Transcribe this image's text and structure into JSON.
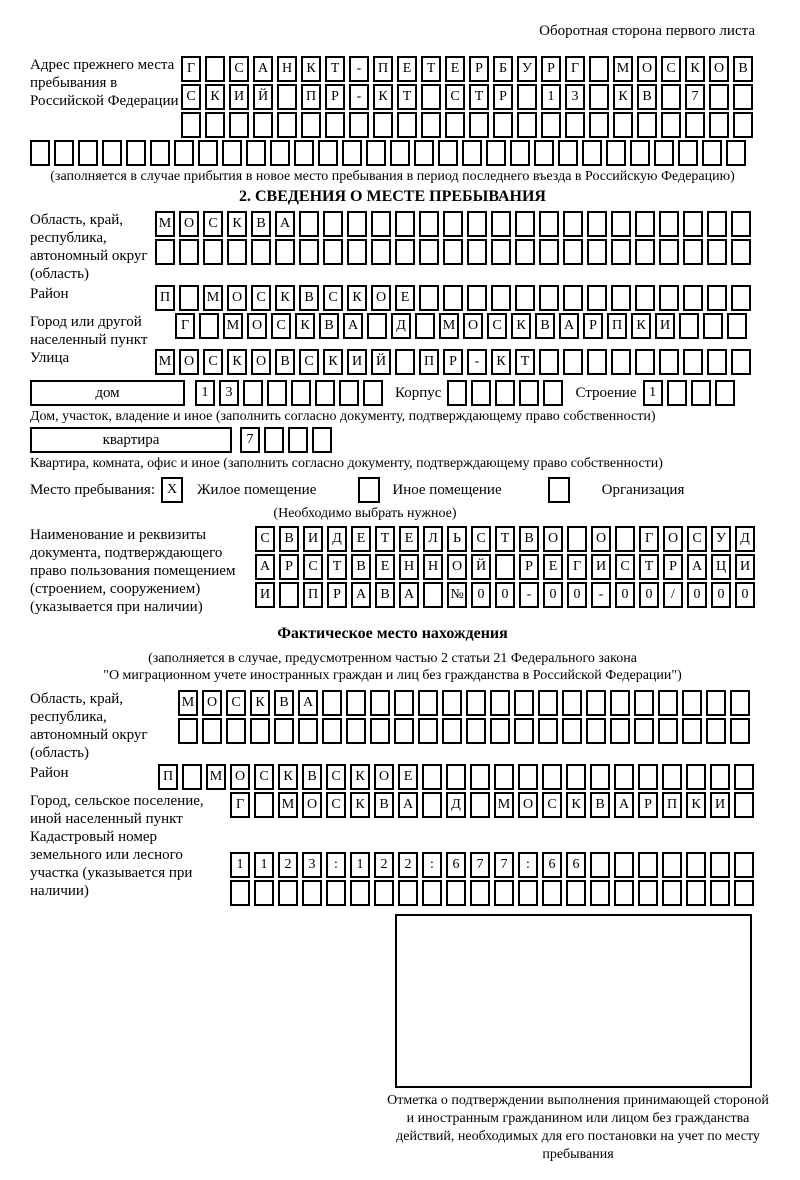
{
  "header": {
    "note": "Оборотная сторона первого листа"
  },
  "prev_address": {
    "label": "Адрес прежнего места пребывания в Российской Федерации",
    "row1": {
      "cells": "Г САНКТ-ПЕТЕРБУРГ МОСКОВ",
      "len": 24
    },
    "row2": {
      "cells": "СКИЙ ПР-КТ СТР 13 КВ 7",
      "len": 24
    },
    "row3": {
      "cells": "",
      "len": 24
    },
    "row4": {
      "cells": "",
      "len": 30
    },
    "note": "(заполняется в случае прибытия в новое место пребывания в период последнего въезда в Российскую Федерацию)"
  },
  "stay_info": {
    "title": "2. СВЕДЕНИЯ О МЕСТЕ ПРЕБЫВАНИЯ",
    "region": {
      "label": "Область, край, республика, автономный округ (область)",
      "row1": {
        "cells": "МОСКВА",
        "len": 25
      },
      "row2": {
        "cells": "",
        "len": 25
      }
    },
    "district": {
      "label": "Район",
      "row": {
        "cells": "П МОСКВСКОЕ",
        "len": 25
      }
    },
    "city": {
      "label": "Город или другой населенный пункт",
      "row": {
        "cells": "Г МОСКВА Д МОСКВАРПКИ",
        "len": 24
      }
    },
    "street": {
      "label": "Улица",
      "row": {
        "cells": "МОСКОВСКИЙ ПР-КТ",
        "len": 25
      }
    },
    "house": {
      "box_label": "дом",
      "cells": {
        "cells": "13",
        "len": 8
      },
      "korpus_label": "Корпус",
      "korpus": {
        "cells": "",
        "len": 5
      },
      "stroenie_label": "Строение",
      "stroenie": {
        "cells": "1",
        "len": 4
      },
      "note": "Дом, участок, владение и иное (заполнить согласно документу, подтверждающему право собственности)"
    },
    "apartment": {
      "box_label": "квартира",
      "cells": {
        "cells": "7",
        "len": 4
      },
      "note": "Квартира, комната, офис и иное (заполнить согласно документу, подтверждающему право собственности)"
    },
    "stay_type": {
      "label": "Место пребывания:",
      "options": [
        {
          "label": "Жилое помещение",
          "checked": "X"
        },
        {
          "label": "Иное помещение",
          "checked": ""
        },
        {
          "label": "Организация",
          "checked": ""
        }
      ],
      "note": "(Необходимо выбрать нужное)"
    },
    "document": {
      "label": "Наименование и реквизиты документа, подтверждающего право пользования помещением (строением, сооружением) (указывается при наличии)",
      "row1": {
        "cells": "СВИДЕТЕЛЬСТВО О ГОСУД",
        "len": 21
      },
      "row2": {
        "cells": "АРСТВЕННОЙ РЕГИСТРАЦИ",
        "len": 21
      },
      "row3": {
        "cells": "И ПРАВА №00-00-00/000",
        "len": 21
      }
    }
  },
  "actual_location": {
    "title": "Фактическое место нахождения",
    "note1": "(заполняется в случае, предусмотренном частью 2 статьи 21 Федерального закона",
    "note2": "\"О миграционном учете иностранных граждан и лиц без гражданства в Российской Федерации\")",
    "region": {
      "label": "Область, край, республика, автономный округ (область)",
      "row1": {
        "cells": "МОСКВА",
        "len": 24
      },
      "row2": {
        "cells": "",
        "len": 24
      }
    },
    "district": {
      "label": "Район",
      "row": {
        "cells": "П МОСКВСКОЕ",
        "len": 25
      }
    },
    "city": {
      "label": "Город, сельское поселение, иной населенный пункт",
      "row": {
        "cells": "Г МОСКВА Д МОСКВАРПКИ",
        "len": 22
      }
    },
    "cadastral": {
      "label": "Кадастровый номер земельного или лесного участка (указывается при наличии)",
      "row1": {
        "cells": "1123:122:677:66",
        "len": 22
      },
      "row2": {
        "cells": "",
        "len": 22
      }
    }
  },
  "confirmation": {
    "caption": "Отметка о подтверждении выполнения принимающей стороной и иностранным гражданином или лицом без гражданства действий, необходимых для его постановки на учет по месту пребывания"
  }
}
